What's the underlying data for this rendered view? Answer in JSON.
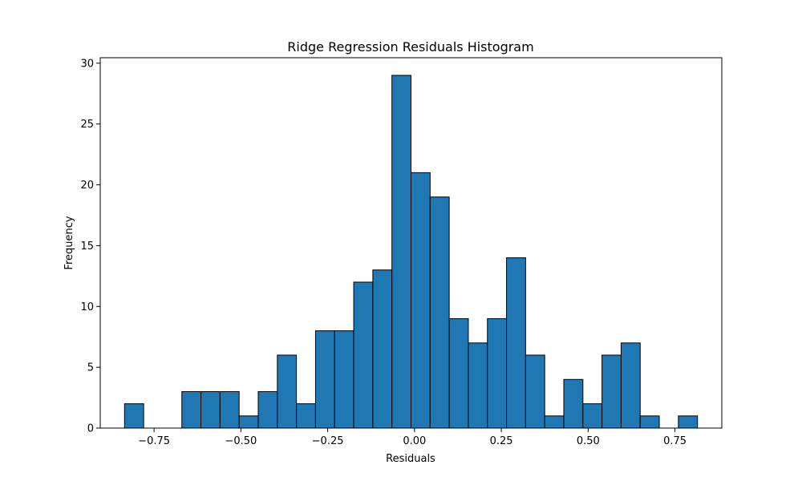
{
  "chart_data": {
    "type": "bar",
    "title": "Ridge Regression Residuals Histogram",
    "xlabel": "Residuals",
    "ylabel": "Frequency",
    "xlim": [
      -0.905,
      0.885
    ],
    "ylim": [
      0,
      30.45
    ],
    "bar_color": "#1f77b4",
    "edge_color": "#000000",
    "grid": false,
    "legend": "none",
    "bins": [
      {
        "x0": -0.835,
        "x1": -0.78,
        "count": 2
      },
      {
        "x0": -0.78,
        "x1": -0.725,
        "count": 0
      },
      {
        "x0": -0.725,
        "x1": -0.67,
        "count": 0
      },
      {
        "x0": -0.67,
        "x1": -0.615,
        "count": 3
      },
      {
        "x0": -0.615,
        "x1": -0.56,
        "count": 3
      },
      {
        "x0": -0.56,
        "x1": -0.505,
        "count": 3
      },
      {
        "x0": -0.505,
        "x1": -0.45,
        "count": 1
      },
      {
        "x0": -0.45,
        "x1": -0.395,
        "count": 3
      },
      {
        "x0": -0.395,
        "x1": -0.34,
        "count": 6
      },
      {
        "x0": -0.34,
        "x1": -0.285,
        "count": 2
      },
      {
        "x0": -0.285,
        "x1": -0.23,
        "count": 8
      },
      {
        "x0": -0.23,
        "x1": -0.175,
        "count": 8
      },
      {
        "x0": -0.175,
        "x1": -0.12,
        "count": 12
      },
      {
        "x0": -0.12,
        "x1": -0.065,
        "count": 13
      },
      {
        "x0": -0.065,
        "x1": -0.01,
        "count": 29
      },
      {
        "x0": -0.01,
        "x1": 0.045,
        "count": 21
      },
      {
        "x0": 0.045,
        "x1": 0.1,
        "count": 19
      },
      {
        "x0": 0.1,
        "x1": 0.155,
        "count": 9
      },
      {
        "x0": 0.155,
        "x1": 0.21,
        "count": 7
      },
      {
        "x0": 0.21,
        "x1": 0.265,
        "count": 9
      },
      {
        "x0": 0.265,
        "x1": 0.32,
        "count": 14
      },
      {
        "x0": 0.32,
        "x1": 0.375,
        "count": 6
      },
      {
        "x0": 0.375,
        "x1": 0.43,
        "count": 1
      },
      {
        "x0": 0.43,
        "x1": 0.485,
        "count": 4
      },
      {
        "x0": 0.485,
        "x1": 0.54,
        "count": 2
      },
      {
        "x0": 0.54,
        "x1": 0.595,
        "count": 6
      },
      {
        "x0": 0.595,
        "x1": 0.65,
        "count": 7
      },
      {
        "x0": 0.65,
        "x1": 0.705,
        "count": 1
      },
      {
        "x0": 0.705,
        "x1": 0.76,
        "count": 0
      },
      {
        "x0": 0.76,
        "x1": 0.815,
        "count": 1
      }
    ],
    "x_ticks": [
      {
        "value": -0.75,
        "label": "−0.75"
      },
      {
        "value": -0.5,
        "label": "−0.50"
      },
      {
        "value": -0.25,
        "label": "−0.25"
      },
      {
        "value": 0.0,
        "label": "0.00"
      },
      {
        "value": 0.25,
        "label": "0.25"
      },
      {
        "value": 0.5,
        "label": "0.50"
      },
      {
        "value": 0.75,
        "label": "0.75"
      }
    ],
    "y_ticks": [
      {
        "value": 0,
        "label": "0"
      },
      {
        "value": 5,
        "label": "5"
      },
      {
        "value": 10,
        "label": "10"
      },
      {
        "value": 15,
        "label": "15"
      },
      {
        "value": 20,
        "label": "20"
      },
      {
        "value": 25,
        "label": "25"
      },
      {
        "value": 30,
        "label": "30"
      }
    ]
  }
}
